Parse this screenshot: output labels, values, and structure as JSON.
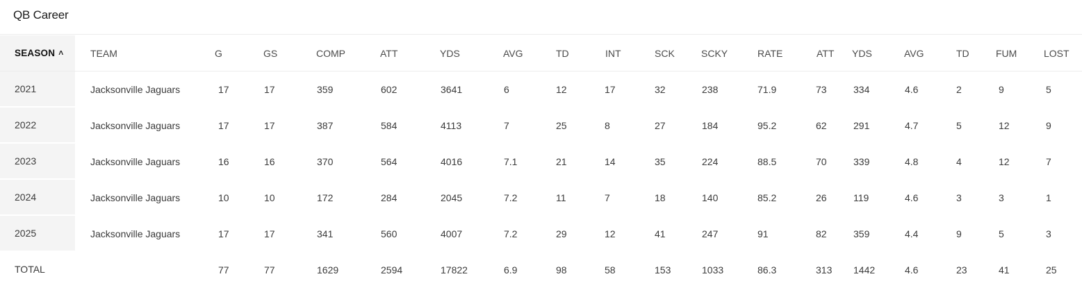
{
  "title": "QB Career",
  "columns": [
    "SEASON",
    "TEAM",
    "G",
    "GS",
    "COMP",
    "ATT",
    "YDS",
    "AVG",
    "TD",
    "INT",
    "SCK",
    "SCKY",
    "RATE",
    "ATT",
    "YDS",
    "AVG",
    "TD",
    "FUM",
    "LOST"
  ],
  "sort": {
    "column": "SEASON",
    "direction": "ascending",
    "icon": "chevron-up-icon"
  },
  "rows": [
    [
      "2021",
      "Jacksonville Jaguars",
      "17",
      "17",
      "359",
      "602",
      "3641",
      "6",
      "12",
      "17",
      "32",
      "238",
      "71.9",
      "73",
      "334",
      "4.6",
      "2",
      "9",
      "5"
    ],
    [
      "2022",
      "Jacksonville Jaguars",
      "17",
      "17",
      "387",
      "584",
      "4113",
      "7",
      "25",
      "8",
      "27",
      "184",
      "95.2",
      "62",
      "291",
      "4.7",
      "5",
      "12",
      "9"
    ],
    [
      "2023",
      "Jacksonville Jaguars",
      "16",
      "16",
      "370",
      "564",
      "4016",
      "7.1",
      "21",
      "14",
      "35",
      "224",
      "88.5",
      "70",
      "339",
      "4.8",
      "4",
      "12",
      "7"
    ],
    [
      "2024",
      "Jacksonville Jaguars",
      "10",
      "10",
      "172",
      "284",
      "2045",
      "7.2",
      "11",
      "7",
      "18",
      "140",
      "85.2",
      "26",
      "119",
      "4.6",
      "3",
      "3",
      "1"
    ],
    [
      "2025",
      "Jacksonville Jaguars",
      "17",
      "17",
      "341",
      "560",
      "4007",
      "7.2",
      "29",
      "12",
      "41",
      "247",
      "91",
      "82",
      "359",
      "4.4",
      "9",
      "5",
      "3"
    ]
  ],
  "total": [
    "TOTAL",
    "",
    "77",
    "77",
    "1629",
    "2594",
    "17822",
    "6.9",
    "98",
    "58",
    "153",
    "1033",
    "86.3",
    "313",
    "1442",
    "4.6",
    "23",
    "41",
    "25"
  ]
}
